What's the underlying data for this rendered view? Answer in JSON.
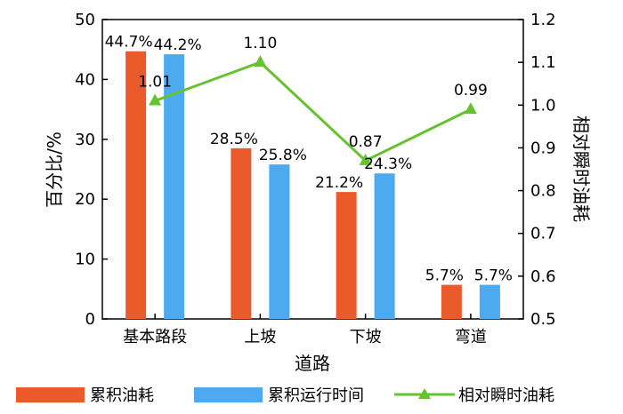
{
  "chart_data": {
    "type": "bar",
    "categories": [
      "基本路段",
      "上坡",
      "下坡",
      "弯道"
    ],
    "series": [
      {
        "name": "累积油耗",
        "type": "bar",
        "axis": "left",
        "color": "#ea5a2a",
        "values": [
          44.7,
          28.5,
          21.2,
          5.7
        ],
        "labels": [
          "44.7%",
          "28.5%",
          "21.2%",
          "5.7%"
        ]
      },
      {
        "name": "累积运行时间",
        "type": "bar",
        "axis": "left",
        "color": "#4da9f0",
        "values": [
          44.2,
          25.8,
          24.3,
          5.7
        ],
        "labels": [
          "44.2%",
          "25.8%",
          "24.3%",
          "5.7%"
        ]
      },
      {
        "name": "相对瞬时油耗",
        "type": "line",
        "axis": "right",
        "color": "#66c22e",
        "marker": "triangle",
        "values": [
          1.01,
          1.1,
          0.87,
          0.99
        ],
        "labels": [
          "1.01",
          "1.10",
          "0.87",
          "0.99"
        ]
      }
    ],
    "xlabel": "道路",
    "ylabel": "百分比/%",
    "y2label": "相对瞬时油耗",
    "ylim": [
      0,
      50
    ],
    "y2lim": [
      0.5,
      1.2
    ],
    "yticks": [
      "0",
      "10",
      "20",
      "30",
      "40",
      "50"
    ],
    "y2ticks": [
      "0.5",
      "0.6",
      "0.7",
      "0.8",
      "0.9",
      "1.0",
      "1.1",
      "1.2"
    ],
    "grid": false,
    "legend_position": "bottom"
  }
}
